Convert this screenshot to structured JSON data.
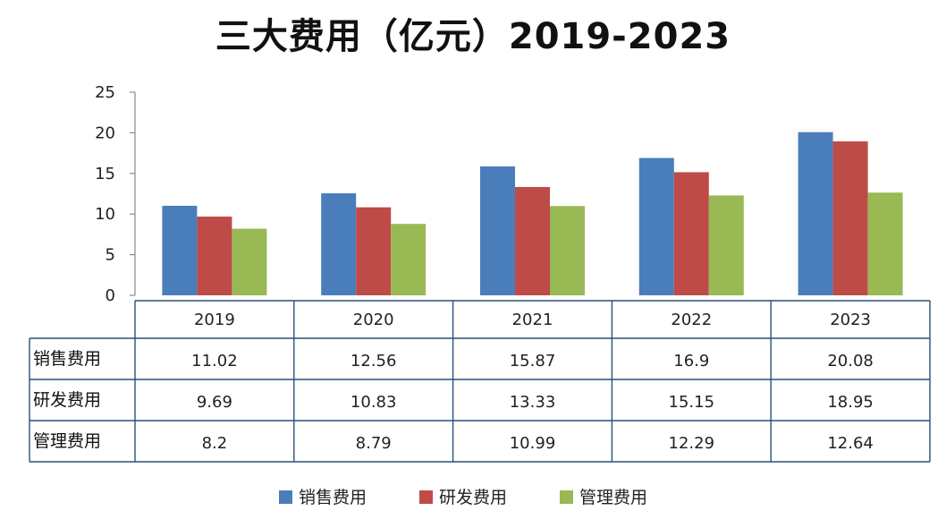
{
  "chart_data": {
    "type": "bar",
    "title": "三大费用（亿元）2019-2023",
    "categories": [
      "2019",
      "2020",
      "2021",
      "2022",
      "2023"
    ],
    "series": [
      {
        "name": "销售费用",
        "color": "#4a7ebb",
        "values": [
          11.02,
          12.56,
          15.87,
          16.9,
          20.08
        ],
        "labels": [
          "11.02",
          "12.56",
          "15.87",
          "16.9",
          "20.08"
        ]
      },
      {
        "name": "研发费用",
        "color": "#be4b48",
        "values": [
          9.69,
          10.83,
          13.33,
          15.15,
          18.95
        ],
        "labels": [
          "9.69",
          "10.83",
          "13.33",
          "15.15",
          "18.95"
        ]
      },
      {
        "name": "管理费用",
        "color": "#98b954",
        "values": [
          8.2,
          8.79,
          10.99,
          12.29,
          12.64
        ],
        "labels": [
          "8.2",
          "8.79",
          "10.99",
          "12.29",
          "12.64"
        ]
      }
    ],
    "ylim": [
      0,
      25
    ],
    "yticks": [
      "0",
      "5",
      "10",
      "15",
      "20",
      "25"
    ],
    "grid": false,
    "legend": "bottom",
    "data_table": true
  }
}
